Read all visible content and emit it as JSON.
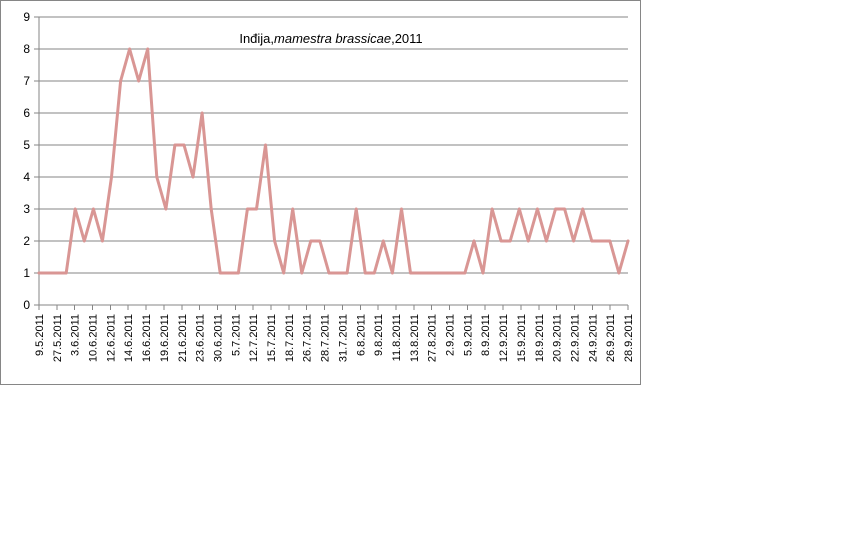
{
  "chart_data": {
    "type": "line",
    "title_parts": [
      {
        "text": "Inđija,",
        "italic": false
      },
      {
        "text": "mamestra brassicae",
        "italic": true
      },
      {
        "text": ",2011",
        "italic": false
      }
    ],
    "xlabel": "",
    "ylabel": "",
    "ylim": [
      0,
      9
    ],
    "yticks": [
      0,
      1,
      2,
      3,
      4,
      5,
      6,
      7,
      8,
      9
    ],
    "grid": true,
    "legend": "none",
    "line_color": "#d99694",
    "tick_labels": [
      "9.5.2011",
      "27.5.2011",
      "3.6.2011",
      "10.6.2011",
      "12.6.2011",
      "14.6.2011",
      "16.6.2011",
      "19.6.2011",
      "21.6.2011",
      "23.6.2011",
      "30.6.2011",
      "5.7.2011",
      "12.7.2011",
      "15.7.2011",
      "18.7.2011",
      "26.7.2011",
      "28.7.2011",
      "31.7.2011",
      "6.8.2011",
      "9.8.2011",
      "11.8.2011",
      "13.8.2011",
      "27.8.2011",
      "2.9.2011",
      "5.9.2011",
      "8.9.2011",
      "12.9.2011",
      "15.9.2011",
      "18.9.2011",
      "20.9.2011",
      "22.9.2011",
      "24.9.2011",
      "26.9.2011",
      "28.9.2011"
    ],
    "values": [
      1,
      1,
      1,
      1,
      3,
      2,
      3,
      2,
      4,
      7,
      8,
      7,
      8,
      4,
      3,
      5,
      5,
      4,
      6,
      3,
      1,
      1,
      1,
      3,
      3,
      5,
      2,
      1,
      3,
      1,
      2,
      2,
      1,
      1,
      1,
      3,
      1,
      1,
      2,
      1,
      3,
      1,
      1,
      1,
      1,
      1,
      1,
      1,
      2,
      1,
      3,
      2,
      2,
      3,
      2,
      3,
      2,
      3,
      3,
      2,
      3,
      2,
      2,
      2,
      1,
      2
    ]
  }
}
